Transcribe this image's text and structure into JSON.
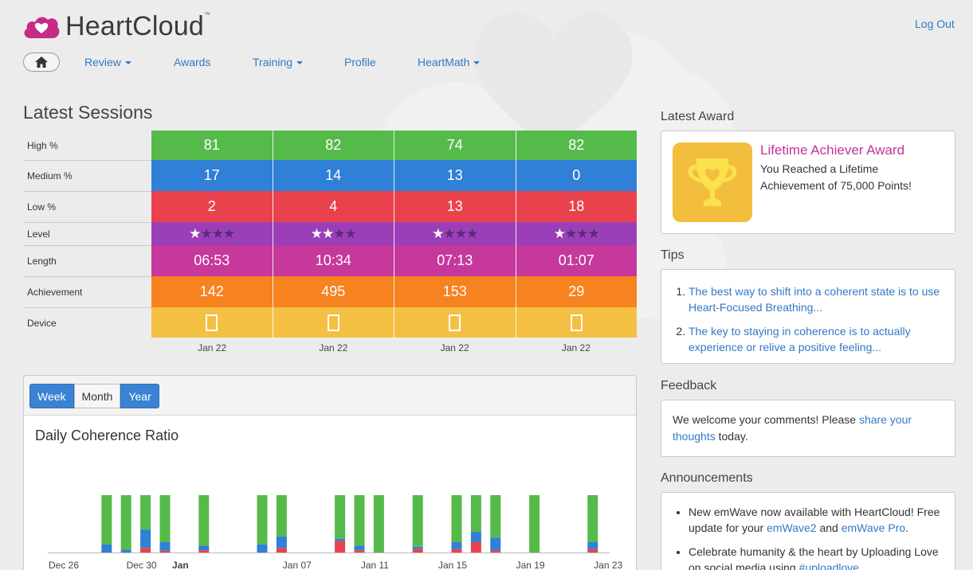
{
  "app": {
    "name": "HeartCloud",
    "trademark": "™"
  },
  "header": {
    "logout_label": "Log Out"
  },
  "nav": {
    "items": [
      {
        "label": "Review",
        "dropdown": true
      },
      {
        "label": "Awards",
        "dropdown": false
      },
      {
        "label": "Training",
        "dropdown": true
      },
      {
        "label": "Profile",
        "dropdown": false
      },
      {
        "label": "HeartMath",
        "dropdown": true
      }
    ]
  },
  "latest_sessions": {
    "title": "Latest Sessions",
    "row_labels": {
      "high": "High %",
      "medium": "Medium %",
      "low": "Low %",
      "level": "Level",
      "length": "Length",
      "achievement": "Achievement",
      "device": "Device"
    },
    "row_colors": {
      "high": "#55ba4a",
      "medium": "#2f80d6",
      "low": "#e9424c",
      "level": "#9b3fb8",
      "length": "#c6389c",
      "achievement": "#f68220",
      "device": "#f4c044"
    },
    "sessions": [
      {
        "high": "81",
        "medium": "17",
        "low": "2",
        "level": 1,
        "length": "06:53",
        "achievement": "142",
        "date": "Jan 22"
      },
      {
        "high": "82",
        "medium": "14",
        "low": "4",
        "level": 2,
        "length": "10:34",
        "achievement": "495",
        "date": "Jan 22"
      },
      {
        "high": "74",
        "medium": "13",
        "low": "13",
        "level": 1,
        "length": "07:13",
        "achievement": "153",
        "date": "Jan 22"
      },
      {
        "high": "82",
        "medium": "0",
        "low": "18",
        "level": 1,
        "length": "01:07",
        "achievement": "29",
        "date": "Jan 22"
      }
    ],
    "max_level": 4
  },
  "chart_panel": {
    "tabs": [
      {
        "label": "Week",
        "active": true
      },
      {
        "label": "Month",
        "active": false
      },
      {
        "label": "Year",
        "active": true
      }
    ],
    "title": "Daily Coherence Ratio"
  },
  "chart_data": {
    "type": "bar",
    "stacked": true,
    "title": "Daily Coherence Ratio",
    "x_tick_labels": [
      "Dec 26",
      "Dec 30",
      "Jan",
      "Jan 07",
      "Jan 11",
      "Jan 15",
      "Jan 19",
      "Jan 23"
    ],
    "x_range": [
      "Dec 26",
      "Jan 23"
    ],
    "y_range": [
      0,
      100
    ],
    "series_colors": {
      "low": "#e9424c",
      "medium": "#2f80d6",
      "high": "#55ba4a"
    },
    "days": [
      {
        "date": "Dec 28",
        "low": 0,
        "medium": 14,
        "high": 86
      },
      {
        "date": "Dec 29",
        "low": 0,
        "medium": 5,
        "high": 95
      },
      {
        "date": "Dec 30",
        "low": 8,
        "medium": 32,
        "high": 60
      },
      {
        "date": "Dec 31",
        "low": 3,
        "medium": 15,
        "high": 82
      },
      {
        "date": "Jan 02",
        "low": 4,
        "medium": 8,
        "high": 88
      },
      {
        "date": "Jan 05",
        "low": 0,
        "medium": 14,
        "high": 86
      },
      {
        "date": "Jan 06",
        "low": 8,
        "medium": 20,
        "high": 72
      },
      {
        "date": "Jan 09",
        "low": 20,
        "medium": 4,
        "high": 76
      },
      {
        "date": "Jan 10",
        "low": 4,
        "medium": 8,
        "high": 88
      },
      {
        "date": "Jan 11",
        "low": 0,
        "medium": 0,
        "high": 100
      },
      {
        "date": "Jan 13",
        "low": 6,
        "medium": 4,
        "high": 90
      },
      {
        "date": "Jan 15",
        "low": 6,
        "medium": 12,
        "high": 82
      },
      {
        "date": "Jan 16",
        "low": 18,
        "medium": 18,
        "high": 64
      },
      {
        "date": "Jan 17",
        "low": 4,
        "medium": 22,
        "high": 74
      },
      {
        "date": "Jan 19",
        "low": 0,
        "medium": 0,
        "high": 100
      },
      {
        "date": "Jan 22",
        "low": 6,
        "medium": 12,
        "high": 82
      }
    ]
  },
  "latest_award": {
    "heading": "Latest Award",
    "title": "Lifetime Achiever Award",
    "text": "You Reached a Lifetime Achievement of 75,000 Points!"
  },
  "tips": {
    "heading": "Tips",
    "items": [
      "The best way to shift into a coherent state is to use Heart-Focused Breathing...",
      "The key to staying in coherence is to actually experience or relive a positive feeling..."
    ]
  },
  "feedback": {
    "heading": "Feedback",
    "text_before": "We welcome your comments! Please ",
    "link": "share your thoughts",
    "text_after": " today."
  },
  "announcements": {
    "heading": "Announcements",
    "items": [
      {
        "text_before": "New emWave now available with HeartCloud! Free update for your ",
        "link1": "emWave2",
        "middle": " and ",
        "link2": "emWave Pro",
        "text_after": "."
      },
      {
        "text_before": "Celebrate humanity & the heart by Uploading Love on social media using ",
        "link1": "#uploadlove"
      }
    ]
  }
}
